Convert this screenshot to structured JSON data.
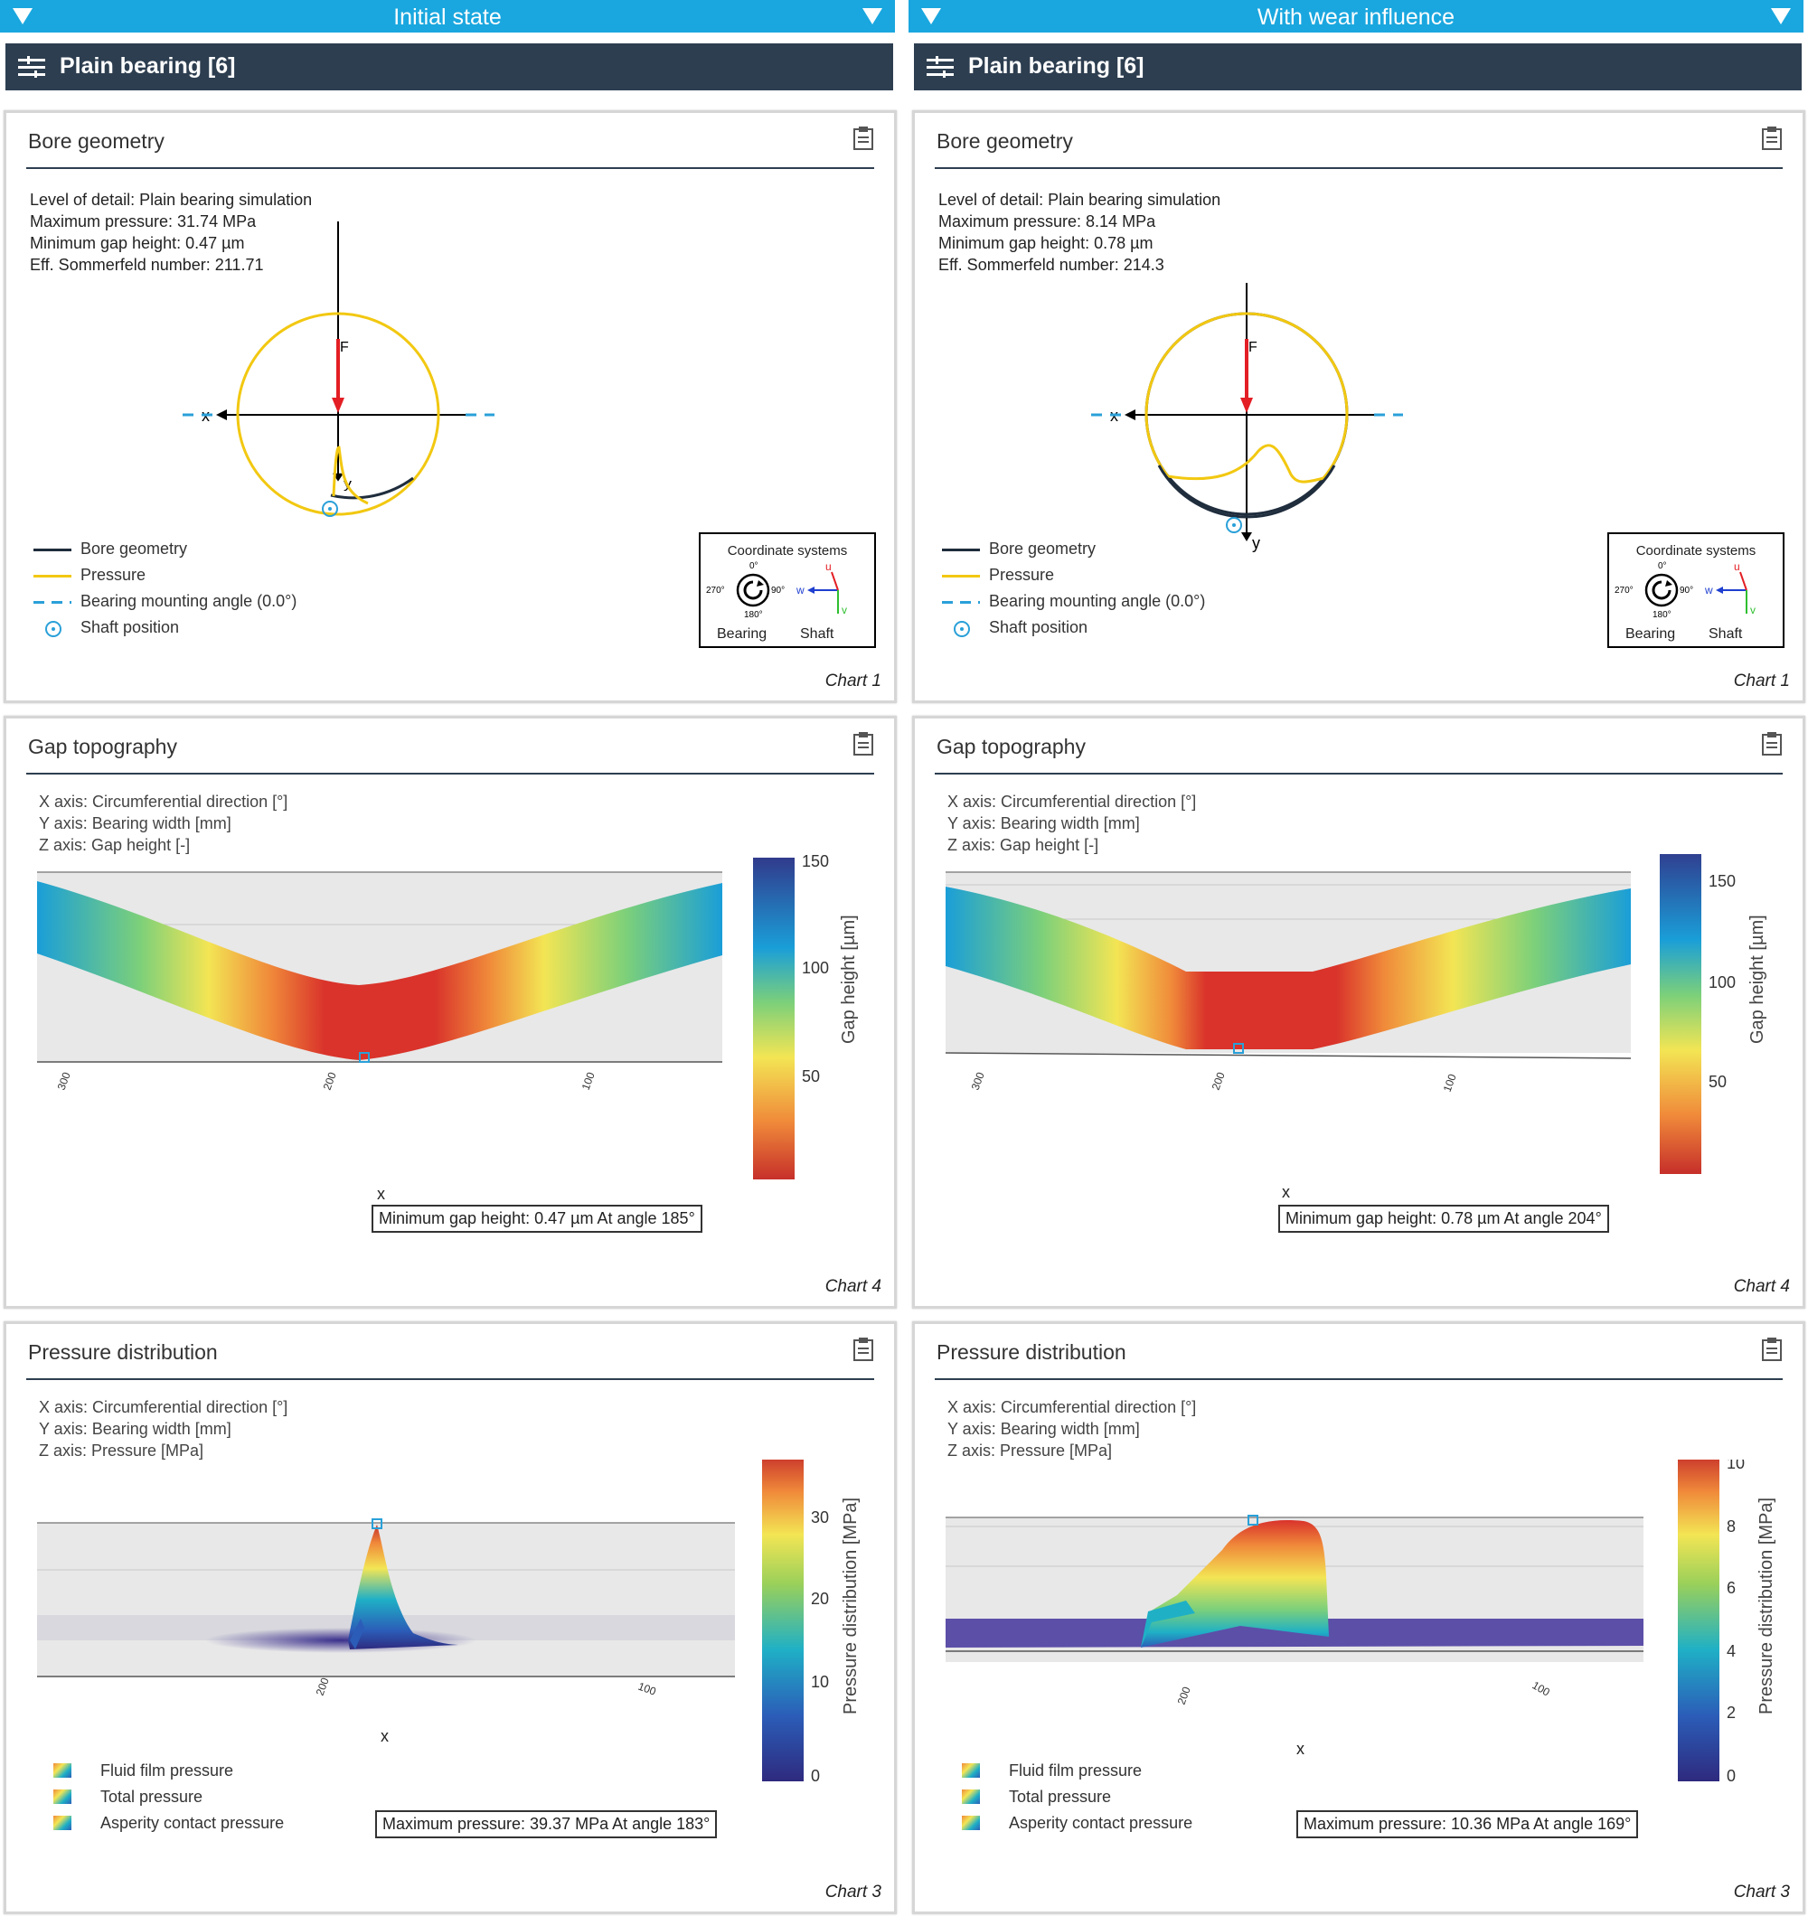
{
  "columns": [
    {
      "state_title": "Initial state",
      "header_title": "Plain bearing [6]",
      "bore": {
        "title": "Bore geometry",
        "info": [
          "Level of detail: Plain bearing simulation",
          "Maximum pressure: 31.74 MPa",
          "Minimum gap height: 0.47 µm",
          "Eff. Sommerfeld number: 211.71"
        ],
        "legend": [
          "Bore geometry",
          "Pressure",
          "Bearing mounting angle (0.0°)",
          "Shaft position"
        ],
        "force_label": "F",
        "x_label": "x",
        "y_label": "y",
        "coord": {
          "title": "Coordinate systems",
          "deg0": "0°",
          "deg90": "90°",
          "deg180": "180°",
          "deg270": "270°",
          "u": "u",
          "v": "v",
          "w": "w",
          "bearing": "Bearing",
          "shaft": "Shaft"
        },
        "chart_no": "Chart 1"
      },
      "gap": {
        "title": "Gap topography",
        "info": [
          "X axis: Circumferential direction [°]",
          "Y axis: Bearing width [mm]",
          "Z axis: Gap height [-]"
        ],
        "colorbar_title": "Gap height [µm]",
        "colorbar_ticks": [
          "150",
          "100",
          "50"
        ],
        "x_ticks": [
          "300",
          "200",
          "100"
        ],
        "x_label": "x",
        "annotation": "Minimum gap height: 0.47 µm At angle 185°",
        "chart_no": "Chart 4"
      },
      "pressure": {
        "title": "Pressure distribution",
        "info": [
          "X axis: Circumferential direction [°]",
          "Y axis: Bearing width [mm]",
          "Z axis: Pressure [MPa]"
        ],
        "colorbar_title": "Pressure distribution [MPa]",
        "colorbar_ticks": [
          "30",
          "20",
          "10",
          "0"
        ],
        "x_ticks": [
          "200",
          "100"
        ],
        "x_label": "x",
        "legend": [
          "Fluid film pressure",
          "Total pressure",
          "Asperity contact pressure"
        ],
        "annotation": "Maximum pressure: 39.37 MPa At angle 183°",
        "chart_no": "Chart 3"
      }
    },
    {
      "state_title": "With wear influence",
      "header_title": "Plain bearing [6]",
      "bore": {
        "title": "Bore geometry",
        "info": [
          "Level of detail: Plain bearing simulation",
          "Maximum pressure: 8.14 MPa",
          "Minimum gap height: 0.78 µm",
          "Eff. Sommerfeld number: 214.3"
        ],
        "legend": [
          "Bore geometry",
          "Pressure",
          "Bearing mounting angle (0.0°)",
          "Shaft position"
        ],
        "force_label": "F",
        "x_label": "x",
        "y_label": "y",
        "coord": {
          "title": "Coordinate systems",
          "deg0": "0°",
          "deg90": "90°",
          "deg180": "180°",
          "deg270": "270°",
          "u": "u",
          "v": "v",
          "w": "w",
          "bearing": "Bearing",
          "shaft": "Shaft"
        },
        "chart_no": "Chart 1"
      },
      "gap": {
        "title": "Gap topography",
        "info": [
          "X axis: Circumferential direction [°]",
          "Y axis: Bearing width [mm]",
          "Z axis: Gap height [-]"
        ],
        "colorbar_title": "Gap height [µm]",
        "colorbar_ticks": [
          "150",
          "100",
          "50"
        ],
        "x_ticks": [
          "300",
          "200",
          "100"
        ],
        "x_label": "x",
        "annotation": "Minimum gap height: 0.78 µm At angle 204°",
        "chart_no": "Chart 4"
      },
      "pressure": {
        "title": "Pressure distribution",
        "info": [
          "X axis: Circumferential direction [°]",
          "Y axis: Bearing width [mm]",
          "Z axis: Pressure [MPa]"
        ],
        "colorbar_title": "Pressure distribution [MPa]",
        "colorbar_ticks": [
          "10",
          "8",
          "6",
          "4",
          "2",
          "0"
        ],
        "x_ticks": [
          "200",
          "100"
        ],
        "x_label": "x",
        "legend": [
          "Fluid film pressure",
          "Total pressure",
          "Asperity contact pressure"
        ],
        "annotation": "Maximum pressure: 10.36 MPa At angle 169°",
        "chart_no": "Chart 3"
      }
    }
  ],
  "colors": {
    "accent": "#1aa7df",
    "header": "#2d3e50",
    "bore_line": "#1f2d3d",
    "pressure_line": "#f2c811",
    "force_arrow": "#e31e24",
    "shaft_marker": "#2aa0d8"
  },
  "icons": {
    "collapse": "triangle-down-icon",
    "menu": "menu-lines-icon",
    "export": "clipboard-icon"
  }
}
